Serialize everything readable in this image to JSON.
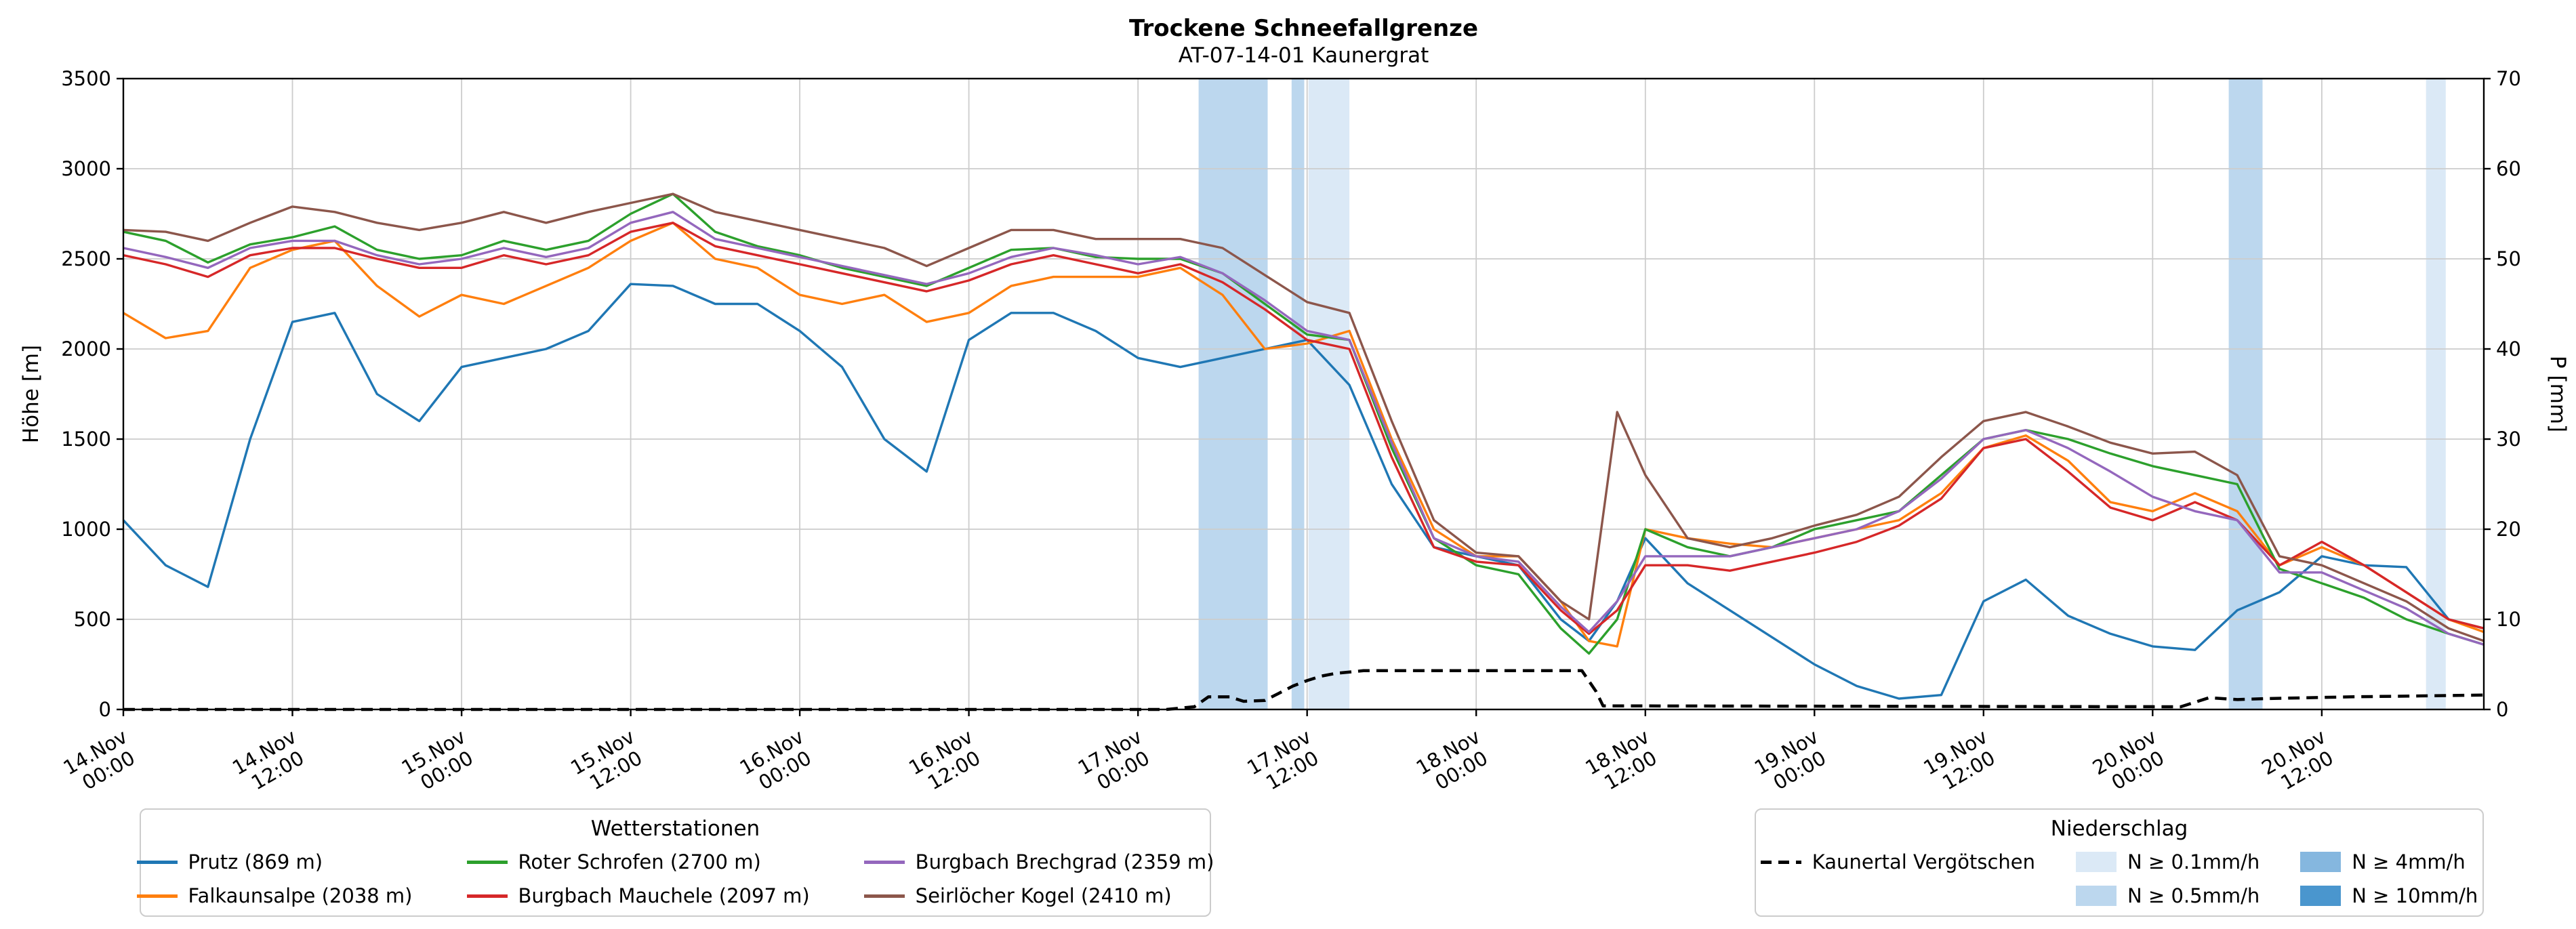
{
  "chart_data": {
    "type": "line",
    "title": "Trockene Schneefallgrenze",
    "subtitle": "AT-07-14-01 Kaunergrat",
    "x_unit": "hours since 14.Nov 00:00",
    "grid": true,
    "x_hours": [
      0,
      3,
      6,
      9,
      12,
      15,
      18,
      21,
      24,
      27,
      30,
      33,
      36,
      39,
      42,
      45,
      48,
      51,
      54,
      57,
      60,
      63,
      66,
      69,
      72,
      75,
      78,
      81,
      84,
      87,
      90,
      93,
      96,
      99,
      102,
      104,
      106,
      108,
      111,
      114,
      117,
      120,
      123,
      126,
      129,
      132,
      135,
      138,
      141,
      144,
      147,
      150,
      153,
      156,
      159,
      162,
      165,
      167.5
    ],
    "series": [
      {
        "id": "prutz",
        "name": "Prutz (869 m)",
        "color": "#1f77b4",
        "axis": "left",
        "values": [
          1050,
          800,
          680,
          1500,
          2150,
          2200,
          1750,
          1600,
          1900,
          1950,
          2000,
          2100,
          2360,
          2350,
          2250,
          2250,
          2100,
          1900,
          1500,
          1320,
          2050,
          2200,
          2200,
          2100,
          1950,
          1900,
          1950,
          2000,
          2050,
          1800,
          1250,
          900,
          850,
          800,
          500,
          380,
          600,
          950,
          700,
          550,
          400,
          250,
          130,
          60,
          80,
          600,
          720,
          520,
          420,
          350,
          330,
          550,
          650,
          850,
          800,
          790,
          500,
          450
        ]
      },
      {
        "id": "falkaunsalpe",
        "name": "Falkaunsalpe (2038 m)",
        "color": "#ff7f0e",
        "axis": "left",
        "values": [
          2200,
          2060,
          2100,
          2450,
          2550,
          2600,
          2350,
          2180,
          2300,
          2250,
          2350,
          2450,
          2600,
          2700,
          2500,
          2450,
          2300,
          2250,
          2300,
          2150,
          2200,
          2350,
          2400,
          2400,
          2400,
          2450,
          2300,
          2000,
          2030,
          2100,
          1500,
          1000,
          850,
          850,
          600,
          380,
          350,
          1000,
          950,
          920,
          900,
          950,
          1000,
          1050,
          1200,
          1450,
          1520,
          1380,
          1150,
          1100,
          1200,
          1100,
          800,
          900,
          800,
          650,
          500,
          430
        ]
      },
      {
        "id": "roter_schrofen",
        "name": "Roter Schrofen (2700 m)",
        "color": "#2ca02c",
        "axis": "left",
        "values": [
          2650,
          2600,
          2480,
          2580,
          2620,
          2680,
          2550,
          2500,
          2520,
          2600,
          2550,
          2600,
          2750,
          2860,
          2650,
          2570,
          2520,
          2450,
          2400,
          2350,
          2450,
          2550,
          2560,
          2510,
          2500,
          2500,
          2420,
          2250,
          2080,
          2050,
          1450,
          950,
          800,
          750,
          450,
          310,
          500,
          1000,
          900,
          850,
          900,
          1000,
          1050,
          1100,
          1300,
          1500,
          1550,
          1500,
          1420,
          1350,
          1300,
          1250,
          780,
          700,
          620,
          500,
          420,
          360
        ]
      },
      {
        "id": "burgbach_mauchele",
        "name": "Burgbach Mauchele (2097 m)",
        "color": "#d62728",
        "axis": "left",
        "values": [
          2520,
          2470,
          2400,
          2520,
          2560,
          2560,
          2500,
          2450,
          2450,
          2520,
          2470,
          2520,
          2650,
          2700,
          2570,
          2520,
          2470,
          2420,
          2370,
          2320,
          2380,
          2470,
          2520,
          2470,
          2420,
          2470,
          2370,
          2220,
          2050,
          2000,
          1400,
          900,
          820,
          800,
          550,
          420,
          550,
          800,
          800,
          770,
          820,
          870,
          930,
          1020,
          1170,
          1450,
          1500,
          1320,
          1120,
          1050,
          1150,
          1050,
          800,
          930,
          800,
          650,
          500,
          450
        ]
      },
      {
        "id": "burgbach_brechgrad",
        "name": "Burgbach Brechgrad (2359 m)",
        "color": "#9467bd",
        "axis": "left",
        "values": [
          2560,
          2510,
          2450,
          2560,
          2600,
          2600,
          2520,
          2470,
          2500,
          2560,
          2510,
          2560,
          2700,
          2760,
          2610,
          2560,
          2510,
          2460,
          2410,
          2360,
          2420,
          2510,
          2560,
          2520,
          2470,
          2510,
          2420,
          2270,
          2100,
          2050,
          1480,
          950,
          850,
          820,
          570,
          430,
          600,
          850,
          850,
          850,
          900,
          950,
          1000,
          1100,
          1280,
          1500,
          1550,
          1450,
          1320,
          1180,
          1100,
          1050,
          760,
          760,
          660,
          560,
          420,
          360
        ]
      },
      {
        "id": "seirloecher_kogel",
        "name": "Seirlöcher Kogel (2410 m)",
        "color": "#8c564b",
        "axis": "left",
        "values": [
          2660,
          2650,
          2600,
          2700,
          2790,
          2760,
          2700,
          2660,
          2700,
          2760,
          2700,
          2760,
          2810,
          2860,
          2760,
          2710,
          2660,
          2610,
          2560,
          2460,
          2560,
          2660,
          2660,
          2610,
          2610,
          2610,
          2560,
          2410,
          2260,
          2200,
          1600,
          1050,
          870,
          850,
          600,
          500,
          1650,
          1300,
          950,
          900,
          950,
          1020,
          1080,
          1180,
          1400,
          1600,
          1650,
          1570,
          1480,
          1420,
          1430,
          1300,
          850,
          800,
          700,
          600,
          450,
          380
        ]
      },
      {
        "id": "kaunertal_vergoetschen",
        "name": "Kaunertal Vergötschen",
        "color": "#000000",
        "axis": "right",
        "dashed": true,
        "points": [
          [
            0,
            0
          ],
          [
            74,
            0
          ],
          [
            76,
            0.3
          ],
          [
            77,
            1.4
          ],
          [
            78.5,
            1.4
          ],
          [
            79.5,
            0.9
          ],
          [
            81,
            1.0
          ],
          [
            82,
            1.8
          ],
          [
            83,
            2.6
          ],
          [
            84,
            3.2
          ],
          [
            85,
            3.7
          ],
          [
            86,
            4.0
          ],
          [
            88,
            4.3
          ],
          [
            103.5,
            4.3
          ],
          [
            104.5,
            2.0
          ],
          [
            105,
            0.4
          ],
          [
            146,
            0.3
          ],
          [
            148,
            1.3
          ],
          [
            150,
            1.1
          ],
          [
            152,
            1.2
          ],
          [
            158,
            1.4
          ],
          [
            163,
            1.5
          ],
          [
            167.5,
            1.6
          ]
        ]
      }
    ],
    "precip_bands": [
      {
        "start": 76.3,
        "end": 81.2,
        "level": "0.5"
      },
      {
        "start": 82.9,
        "end": 83.8,
        "level": "0.5"
      },
      {
        "start": 84.1,
        "end": 87.0,
        "level": "0.1"
      },
      {
        "start": 149.4,
        "end": 151.8,
        "level": "0.5"
      },
      {
        "start": 163.4,
        "end": 164.8,
        "level": "0.1"
      }
    ],
    "band_colors": {
      "0.1": "#dbe9f6",
      "0.5": "#bcd7ee",
      "4": "#85b7df",
      "10": "#4a96ce"
    }
  },
  "axes": {
    "x": {
      "min_hours": 0,
      "max_hours": 167.5,
      "ticks": [
        {
          "hours": 0,
          "line1": "14.Nov",
          "line2": "00:00"
        },
        {
          "hours": 12,
          "line1": "14.Nov",
          "line2": "12:00"
        },
        {
          "hours": 24,
          "line1": "15.Nov",
          "line2": "00:00"
        },
        {
          "hours": 36,
          "line1": "15.Nov",
          "line2": "12:00"
        },
        {
          "hours": 48,
          "line1": "16.Nov",
          "line2": "00:00"
        },
        {
          "hours": 60,
          "line1": "16.Nov",
          "line2": "12:00"
        },
        {
          "hours": 72,
          "line1": "17.Nov",
          "line2": "00:00"
        },
        {
          "hours": 84,
          "line1": "17.Nov",
          "line2": "12:00"
        },
        {
          "hours": 96,
          "line1": "18.Nov",
          "line2": "00:00"
        },
        {
          "hours": 108,
          "line1": "18.Nov",
          "line2": "12:00"
        },
        {
          "hours": 120,
          "line1": "19.Nov",
          "line2": "00:00"
        },
        {
          "hours": 132,
          "line1": "19.Nov",
          "line2": "12:00"
        },
        {
          "hours": 144,
          "line1": "20.Nov",
          "line2": "00:00"
        },
        {
          "hours": 156,
          "line1": "20.Nov",
          "line2": "12:00"
        }
      ]
    },
    "y_left": {
      "label": "Höhe [m]",
      "min": 0,
      "max": 3500,
      "ticks": [
        0,
        500,
        1000,
        1500,
        2000,
        2500,
        3000,
        3500
      ]
    },
    "y_right": {
      "label": "P [mm]",
      "min": 0,
      "max": 70,
      "ticks": [
        0,
        10,
        20,
        30,
        40,
        50,
        60,
        70
      ]
    }
  },
  "legend_stations": {
    "title": "Wetterstationen",
    "items": [
      {
        "label": "Prutz (869 m)",
        "color": "#1f77b4"
      },
      {
        "label": "Roter Schrofen (2700 m)",
        "color": "#2ca02c"
      },
      {
        "label": "Burgbach Brechgrad (2359 m)",
        "color": "#9467bd"
      },
      {
        "label": "Falkaunsalpe (2038 m)",
        "color": "#ff7f0e"
      },
      {
        "label": "Burgbach Mauchele (2097 m)",
        "color": "#d62728"
      },
      {
        "label": "Seirlöcher Kogel (2410 m)",
        "color": "#8c564b"
      }
    ]
  },
  "legend_precip": {
    "title": "Niederschlag",
    "dashed_item": {
      "label": "Kaunertal Vergötschen",
      "color": "#000000"
    },
    "band_items": [
      {
        "label": "N ≥ 0.1mm/h",
        "color": "#dbe9f6"
      },
      {
        "label": "N ≥ 4mm/h",
        "color": "#85b7df"
      },
      {
        "label": "N ≥ 0.5mm/h",
        "color": "#bcd7ee"
      },
      {
        "label": "N ≥ 10mm/h",
        "color": "#4a96ce"
      }
    ]
  }
}
